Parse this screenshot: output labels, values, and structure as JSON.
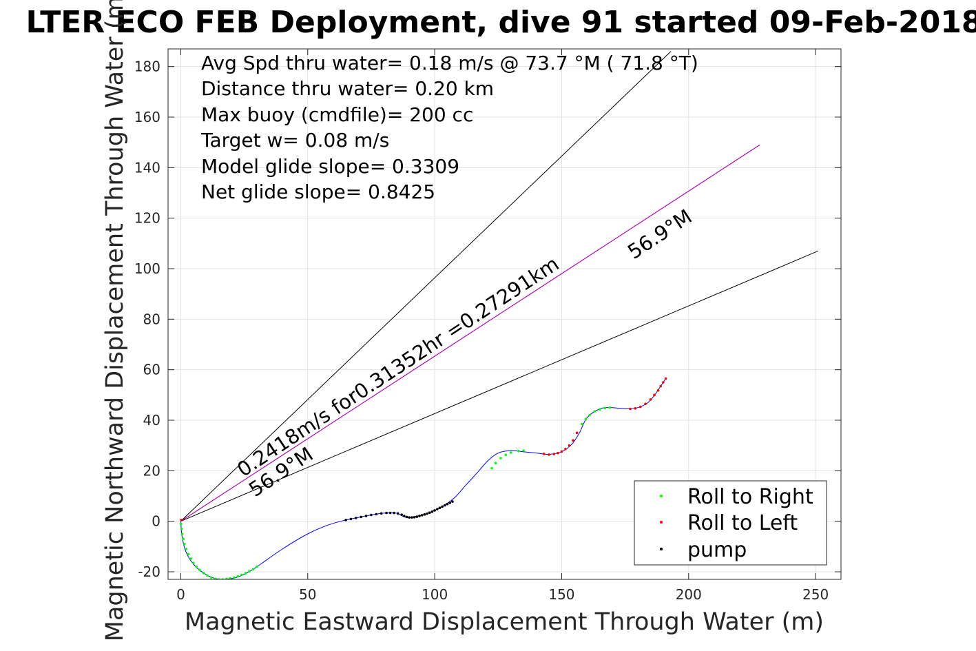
{
  "chart_data": {
    "type": "scatter",
    "title": "LTER ECO FEB Deployment, dive 91 started 09-Feb-2018",
    "xlabel": "Magnetic Eastward Displacement Through Water (m)",
    "ylabel": "Magnetic Northward Displacement Through Water (m)",
    "xlim": [
      -5,
      260
    ],
    "ylim": [
      -23,
      187
    ],
    "xticks": [
      0,
      50,
      100,
      150,
      200,
      250
    ],
    "yticks": [
      -20,
      0,
      20,
      40,
      60,
      80,
      100,
      120,
      140,
      160,
      180
    ],
    "grid": true,
    "legend_position": "bottom-right",
    "info_lines": [
      "Avg Spd thru water=  0.18 m/s @  73.7 °M ( 71.8 °T)",
      "Distance thru water=  0.20 km",
      "Max buoy (cmdfile)= 200 cc",
      "Target w= 0.08 m/s",
      "Model glide slope= 0.3309",
      "Net glide slope= 0.8425"
    ],
    "annotations": [
      "0.2418m/s for0.31352hr =0.27291km",
      "56.9°M",
      "56.9°M"
    ],
    "lines": [
      {
        "x": [
          0,
          193
        ],
        "y": [
          0,
          186
        ],
        "color": "#000000"
      },
      {
        "x": [
          0,
          228
        ],
        "y": [
          0,
          149
        ],
        "color": "#000000"
      },
      {
        "x": [
          0,
          228
        ],
        "y": [
          0,
          149
        ],
        "color": "#cc00cc"
      },
      {
        "x": [
          0,
          251
        ],
        "y": [
          0,
          107
        ],
        "color": "#000000"
      }
    ],
    "track": {
      "color": "#0000ff",
      "x": [
        0,
        0.5,
        2,
        5,
        9,
        13,
        17,
        21,
        25,
        30,
        40,
        50,
        58,
        65,
        70,
        75,
        80,
        85,
        87,
        89,
        92,
        95,
        100,
        104,
        108,
        112,
        117,
        121,
        125,
        130,
        135,
        140,
        145,
        150,
        154,
        157,
        160,
        165,
        169,
        172,
        176,
        180,
        184,
        187,
        189,
        191
      ],
      "y": [
        0,
        -6,
        -12,
        -17,
        -20.5,
        -22.5,
        -23,
        -22.5,
        -21,
        -18,
        -11,
        -5,
        -1.5,
        0.5,
        1.5,
        2.5,
        3.2,
        3.2,
        2.2,
        1.5,
        1.8,
        2.5,
        4.3,
        6.5,
        9.5,
        14,
        19.5,
        24,
        27,
        28,
        27.5,
        27,
        26.5,
        27.5,
        30.5,
        35,
        41,
        44.5,
        45,
        44.8,
        44.5,
        45,
        47,
        50.5,
        53.5,
        56.5
      ]
    },
    "series": [
      {
        "name": "Roll to Right",
        "color": "#00ff00",
        "x": [
          0.1,
          0.3,
          0.6,
          1,
          1.5,
          2.2,
          3,
          4,
          5,
          6.2,
          7.5,
          9,
          10.5,
          12,
          13.5,
          15,
          16.5,
          18,
          19.5,
          21,
          22.5,
          24,
          25.5,
          27,
          28.5,
          30,
          122.5,
          124,
          126,
          128,
          130,
          133,
          135,
          158,
          159.5,
          161,
          163,
          165,
          167,
          169
        ],
        "y": [
          -1,
          -3,
          -5,
          -7,
          -9,
          -11,
          -13,
          -14.8,
          -16.5,
          -18,
          -19.3,
          -20.5,
          -21.5,
          -22.3,
          -22.8,
          -23,
          -23,
          -22.8,
          -22.6,
          -22.3,
          -21.8,
          -21.2,
          -20.6,
          -19.8,
          -19,
          -18,
          21,
          23,
          25,
          26.3,
          27.2,
          27.8,
          28,
          38.5,
          40.5,
          42,
          43.5,
          44.3,
          44.8,
          45
        ]
      },
      {
        "name": "Roll to Left",
        "color": "#ff0000",
        "x": [
          0.2,
          143,
          145,
          147,
          148.5,
          150,
          151.5,
          153,
          154.5,
          156,
          177,
          179,
          181,
          183,
          185,
          186.5,
          188,
          189,
          190,
          191
        ],
        "y": [
          0.5,
          26.7,
          26.4,
          26.6,
          27,
          27.6,
          28.6,
          30,
          32,
          35,
          44.5,
          44.7,
          45.3,
          46.5,
          48.2,
          50,
          51.8,
          53.5,
          55,
          56.5
        ]
      },
      {
        "name": "pump",
        "color": "#000000",
        "x": [
          65,
          67,
          69,
          71,
          73,
          75,
          77,
          79,
          81,
          82.5,
          84,
          85.5,
          87,
          88,
          89,
          90,
          91,
          92,
          93,
          94,
          95,
          96,
          97,
          98,
          99,
          100,
          101,
          102,
          103,
          104,
          105,
          106,
          107
        ],
        "y": [
          0.5,
          0.9,
          1.3,
          1.7,
          2.1,
          2.5,
          2.8,
          3.1,
          3.3,
          3.3,
          3.3,
          3.1,
          2.6,
          2.1,
          1.7,
          1.5,
          1.5,
          1.6,
          1.8,
          2.1,
          2.4,
          2.7,
          3.0,
          3.4,
          3.8,
          4.3,
          4.8,
          5.3,
          5.8,
          6.3,
          6.8,
          7.3,
          7.8
        ]
      }
    ]
  }
}
